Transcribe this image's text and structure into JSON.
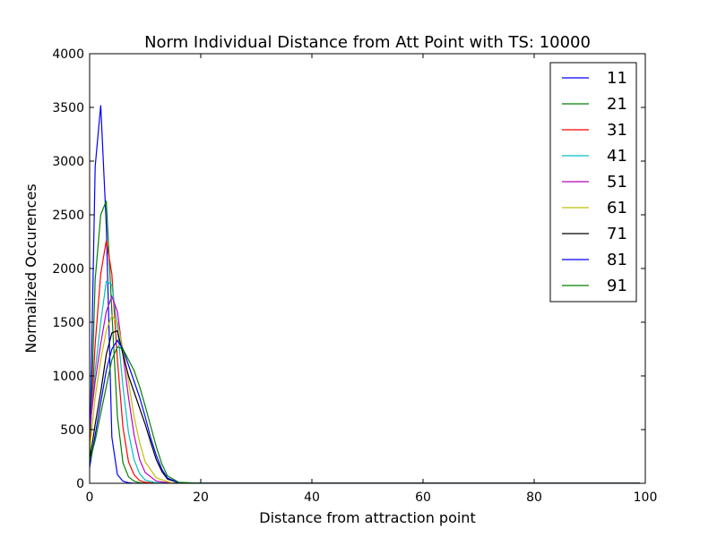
{
  "chart_data": {
    "type": "line",
    "title": "Norm Individual Distance from Att Point with TS: 10000",
    "xlabel": "Distance from attraction point",
    "ylabel": "Normalized Occurences",
    "xlim": [
      0,
      100
    ],
    "ylim": [
      0,
      4000
    ],
    "xticks": [
      0,
      20,
      40,
      60,
      80,
      100
    ],
    "yticks": [
      0,
      500,
      1000,
      1500,
      2000,
      2500,
      3000,
      3500,
      4000
    ],
    "grid": false,
    "legend_position": "top-right",
    "series": [
      {
        "name": "11",
        "color": "#0000ff",
        "x": [
          0,
          1,
          2,
          3,
          4,
          5,
          6,
          7,
          8,
          9,
          10,
          12,
          15,
          20,
          40,
          60,
          80,
          99
        ],
        "y": [
          200,
          2950,
          3520,
          2400,
          430,
          80,
          20,
          5,
          0,
          0,
          0,
          0,
          0,
          0,
          0,
          0,
          0,
          0
        ]
      },
      {
        "name": "21",
        "color": "#008000",
        "x": [
          0,
          1,
          2,
          3,
          4,
          5,
          6,
          7,
          8,
          9,
          10,
          12,
          15,
          20,
          40,
          60,
          80,
          99
        ],
        "y": [
          150,
          1900,
          2500,
          2630,
          1600,
          620,
          190,
          60,
          20,
          5,
          0,
          0,
          0,
          0,
          0,
          0,
          0,
          0
        ]
      },
      {
        "name": "31",
        "color": "#ff0000",
        "x": [
          0,
          1,
          2,
          3,
          4,
          5,
          6,
          7,
          8,
          9,
          10,
          12,
          15,
          20,
          40,
          60,
          80,
          99
        ],
        "y": [
          350,
          1300,
          1950,
          2260,
          1950,
          1150,
          520,
          200,
          80,
          25,
          10,
          0,
          0,
          0,
          0,
          0,
          0,
          0
        ]
      },
      {
        "name": "41",
        "color": "#00bfbf",
        "x": [
          0,
          1,
          2,
          3,
          4,
          5,
          6,
          7,
          8,
          9,
          10,
          12,
          15,
          20,
          40,
          60,
          80,
          99
        ],
        "y": [
          450,
          1050,
          1500,
          1880,
          1850,
          1450,
          900,
          470,
          220,
          90,
          30,
          5,
          0,
          0,
          0,
          0,
          0,
          0
        ]
      },
      {
        "name": "51",
        "color": "#bf00bf",
        "x": [
          0,
          1,
          2,
          3,
          4,
          5,
          6,
          7,
          8,
          9,
          10,
          12,
          15,
          20,
          40,
          60,
          80,
          99
        ],
        "y": [
          500,
          950,
          1300,
          1600,
          1740,
          1600,
          1200,
          800,
          450,
          220,
          100,
          20,
          0,
          0,
          0,
          0,
          0,
          0
        ]
      },
      {
        "name": "61",
        "color": "#bfbf00",
        "x": [
          0,
          1,
          2,
          3,
          4,
          5,
          6,
          7,
          8,
          9,
          10,
          12,
          15,
          20,
          40,
          60,
          80,
          99
        ],
        "y": [
          300,
          800,
          1150,
          1420,
          1560,
          1500,
          1250,
          950,
          620,
          380,
          200,
          50,
          0,
          0,
          0,
          0,
          0,
          0
        ]
      },
      {
        "name": "71",
        "color": "#000000",
        "x": [
          0,
          1,
          2,
          3,
          4,
          5,
          6,
          7,
          8,
          9,
          10,
          11,
          12,
          13,
          14,
          16,
          20,
          40,
          60,
          80,
          99
        ],
        "y": [
          200,
          550,
          850,
          1200,
          1400,
          1420,
          1200,
          1000,
          850,
          700,
          550,
          380,
          220,
          110,
          40,
          5,
          0,
          0,
          0,
          0,
          0
        ]
      },
      {
        "name": "81",
        "color": "#0000ff",
        "x": [
          0,
          1,
          2,
          3,
          4,
          5,
          6,
          7,
          8,
          9,
          10,
          11,
          12,
          13,
          14,
          16,
          20,
          40,
          60,
          80,
          99
        ],
        "y": [
          150,
          450,
          750,
          1050,
          1250,
          1330,
          1250,
          1100,
          950,
          800,
          620,
          420,
          260,
          130,
          50,
          5,
          0,
          0,
          0,
          0,
          0
        ]
      },
      {
        "name": "91",
        "color": "#008000",
        "x": [
          0,
          1,
          2,
          3,
          4,
          5,
          6,
          7,
          8,
          9,
          10,
          11,
          12,
          13,
          14,
          16,
          20,
          40,
          60,
          80,
          99
        ],
        "y": [
          200,
          400,
          650,
          900,
          1150,
          1270,
          1250,
          1150,
          1050,
          900,
          720,
          530,
          340,
          180,
          70,
          10,
          0,
          0,
          0,
          0,
          0
        ]
      }
    ]
  }
}
